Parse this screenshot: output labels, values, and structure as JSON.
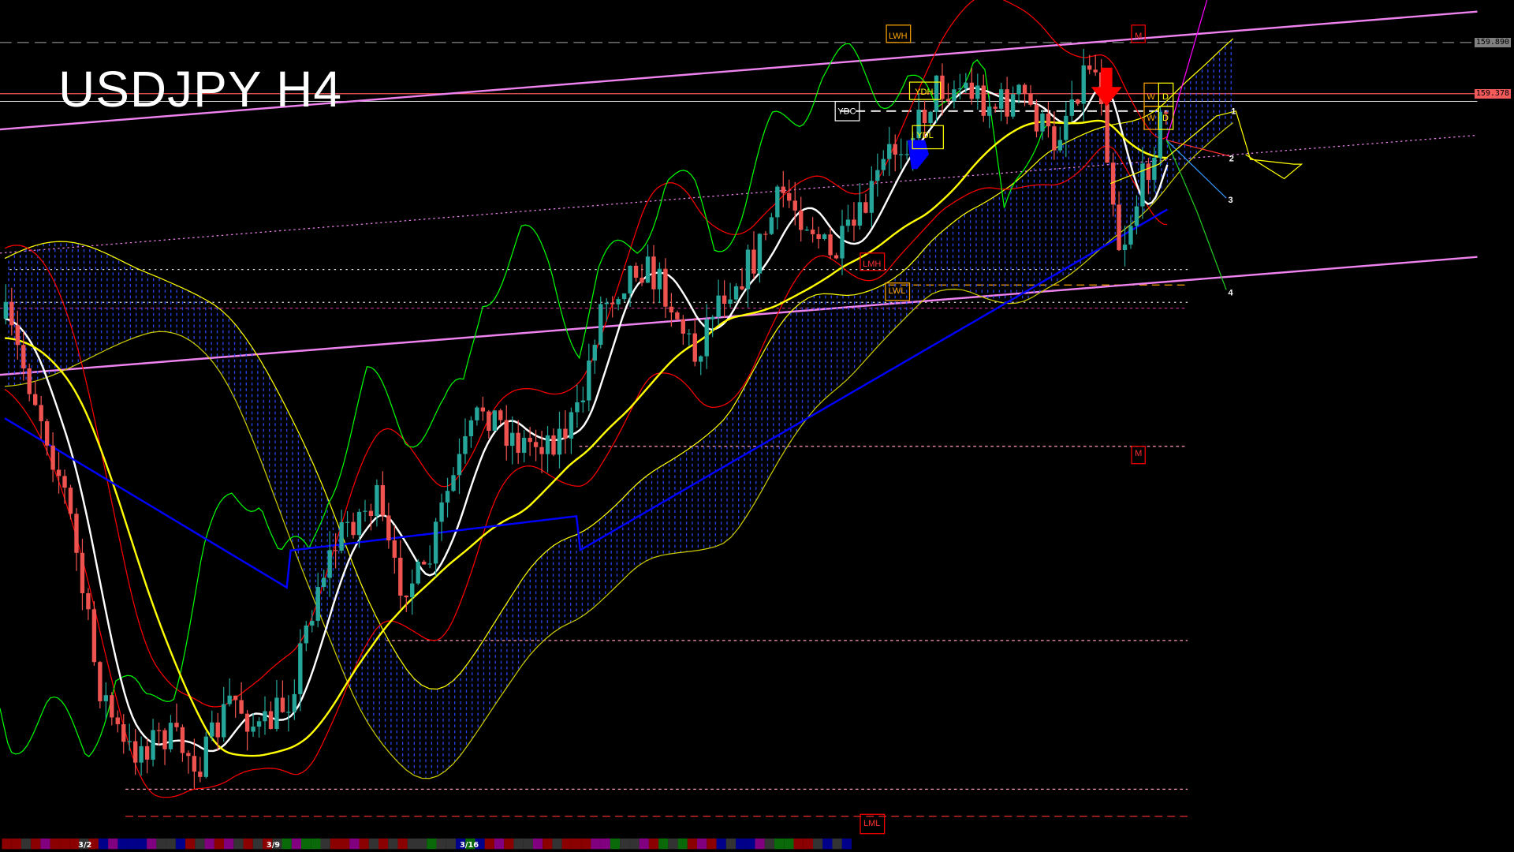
{
  "chart_title": "USDJPY H4",
  "price_labels": [
    {
      "text": "159.890",
      "color": "#808080"
    },
    {
      "text": "159.378",
      "color": "#f05a5a"
    }
  ],
  "level_labels": {
    "lwh": "LWH",
    "ydh": "YDH",
    "ydc": "YDC",
    "ydl": "YDL",
    "lmh": "LMH",
    "lwl": "LWL",
    "lml": "LML",
    "m_top": "M",
    "m_mid": "M",
    "w1": "W",
    "d1": "D",
    "w2": "W",
    "d2": "D"
  },
  "wave_labels": [
    "1",
    "2",
    "3",
    "4"
  ],
  "date_labels": [
    "3/2",
    "3/9",
    "3/16"
  ],
  "colors": {
    "bull": "#26a69a",
    "bear": "#ef5350",
    "channel": "#ee82ee",
    "ma_fast": "#ffffff",
    "ma_mid": "#ffff00",
    "ma_slow": "#0000ff",
    "cloud": "#3b5bff",
    "bollinger": "#ff0000",
    "chikou": "#00ff00"
  }
}
